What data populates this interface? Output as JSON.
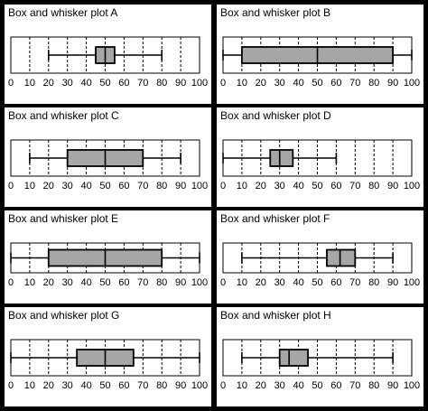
{
  "colors": {
    "box_fill": "#a6a6a6",
    "frame": "#000000",
    "grid": "#000000"
  },
  "chart_data": [
    {
      "type": "box",
      "title": "Box and whisker plot A",
      "xlim": [
        0,
        100
      ],
      "ticks": [
        0,
        10,
        20,
        30,
        40,
        50,
        60,
        70,
        80,
        90,
        100
      ],
      "min": 20,
      "q1": 45,
      "median": 50,
      "q3": 55,
      "max": 80
    },
    {
      "type": "box",
      "title": "Box and whisker plot B",
      "xlim": [
        0,
        100
      ],
      "ticks": [
        0,
        10,
        20,
        30,
        40,
        50,
        60,
        70,
        80,
        90,
        100
      ],
      "min": 0,
      "q1": 10,
      "median": 50,
      "q3": 90,
      "max": 100
    },
    {
      "type": "box",
      "title": "Box and whisker plot C",
      "xlim": [
        0,
        100
      ],
      "ticks": [
        0,
        10,
        20,
        30,
        40,
        50,
        60,
        70,
        80,
        90,
        100
      ],
      "min": 10,
      "q1": 30,
      "median": 50,
      "q3": 70,
      "max": 90
    },
    {
      "type": "box",
      "title": "Box and whisker plot D",
      "xlim": [
        0,
        100
      ],
      "ticks": [
        0,
        10,
        20,
        30,
        40,
        50,
        60,
        70,
        80,
        90,
        100
      ],
      "min": 0,
      "q1": 25,
      "median": 30,
      "q3": 37,
      "max": 60
    },
    {
      "type": "box",
      "title": "Box and whisker plot E",
      "xlim": [
        0,
        100
      ],
      "ticks": [
        0,
        10,
        20,
        30,
        40,
        50,
        60,
        70,
        80,
        90,
        100
      ],
      "min": 0,
      "q1": 20,
      "median": 50,
      "q3": 80,
      "max": 100
    },
    {
      "type": "box",
      "title": "Box and whisker plot F",
      "xlim": [
        0,
        100
      ],
      "ticks": [
        0,
        10,
        20,
        30,
        40,
        50,
        60,
        70,
        80,
        90,
        100
      ],
      "min": 10,
      "q1": 55,
      "median": 62,
      "q3": 70,
      "max": 90
    },
    {
      "type": "box",
      "title": "Box and whisker plot G",
      "xlim": [
        0,
        100
      ],
      "ticks": [
        0,
        10,
        20,
        30,
        40,
        50,
        60,
        70,
        80,
        90,
        100
      ],
      "min": 0,
      "q1": 35,
      "median": 50,
      "q3": 65,
      "max": 100
    },
    {
      "type": "box",
      "title": "Box and whisker plot H",
      "xlim": [
        0,
        100
      ],
      "ticks": [
        0,
        10,
        20,
        30,
        40,
        50,
        60,
        70,
        80,
        90,
        100
      ],
      "min": 10,
      "q1": 30,
      "median": 35,
      "q3": 45,
      "max": 90
    }
  ]
}
